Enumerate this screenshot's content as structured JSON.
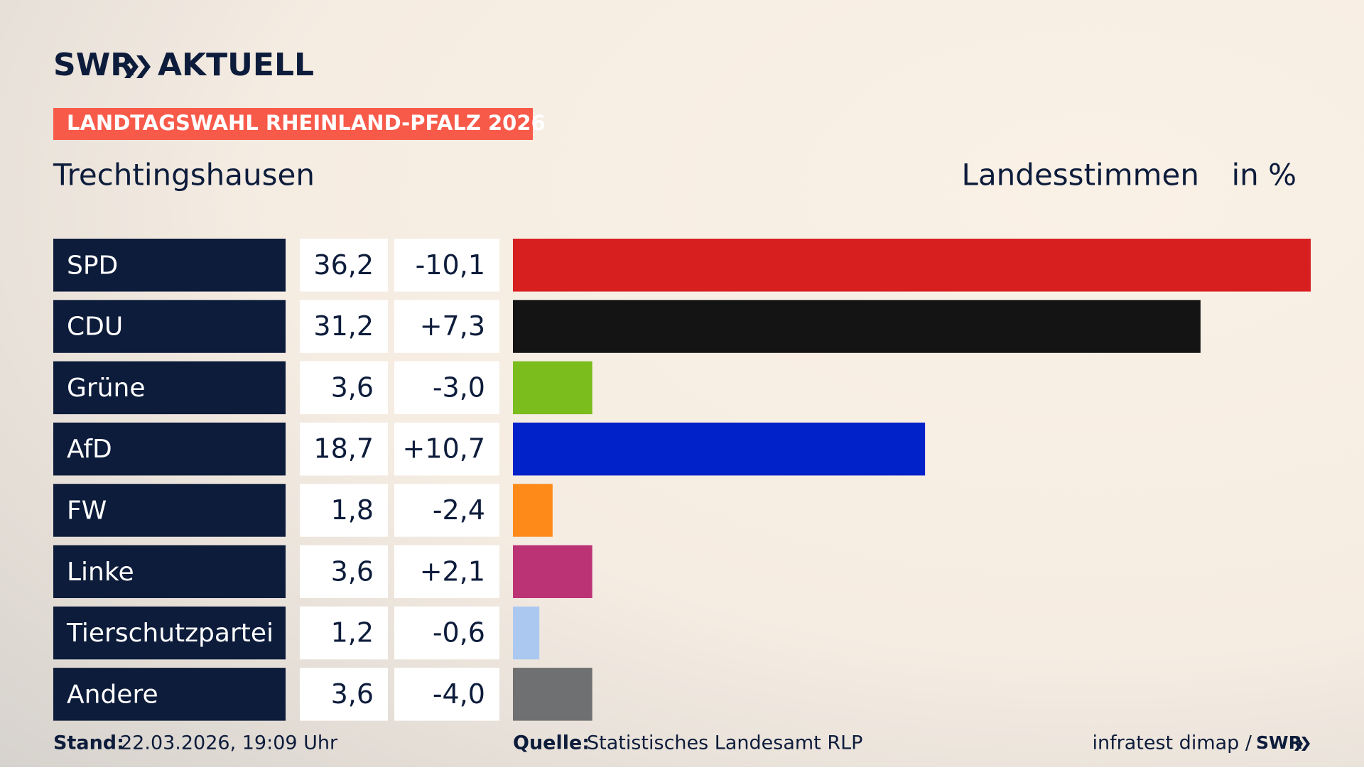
{
  "chart_data": {
    "type": "bar",
    "brand": "SWR",
    "brand_product": "AKTUELL",
    "title": "LANDTAGSWAHL RHEINLAND-PFALZ 2026",
    "subtitle": "Trechtingshausen",
    "measure": "Landesstimmen",
    "unit": "in %",
    "categories": [
      "SPD",
      "CDU",
      "Grüne",
      "AfD",
      "FW",
      "Linke",
      "Tierschutzpartei",
      "Andere"
    ],
    "values": [
      36.2,
      31.2,
      3.6,
      18.7,
      1.8,
      3.6,
      1.2,
      3.6
    ],
    "value_labels": [
      "36,2",
      "31,2",
      "3,6",
      "18,7",
      "1,8",
      "3,6",
      "1,2",
      "3,6"
    ],
    "changes": [
      "-10,1",
      "+7,3",
      "-3,0",
      "+10,7",
      "-2,4",
      "+2,1",
      "-0,6",
      "-4,0"
    ],
    "colors": [
      "#d81f20",
      "#141414",
      "#7abd1d",
      "#0022c8",
      "#fd8a19",
      "#bc3375",
      "#abc9f0",
      "#6f7071"
    ],
    "xlim": [
      0,
      36.2
    ],
    "stand_label": "Stand:",
    "stand": "22.03.2026, 19:09 Uhr",
    "source_label": "Quelle:",
    "source": "Statistisches Landesamt RLP",
    "credit": "infratest dimap /",
    "credit_brand": "SWR"
  }
}
